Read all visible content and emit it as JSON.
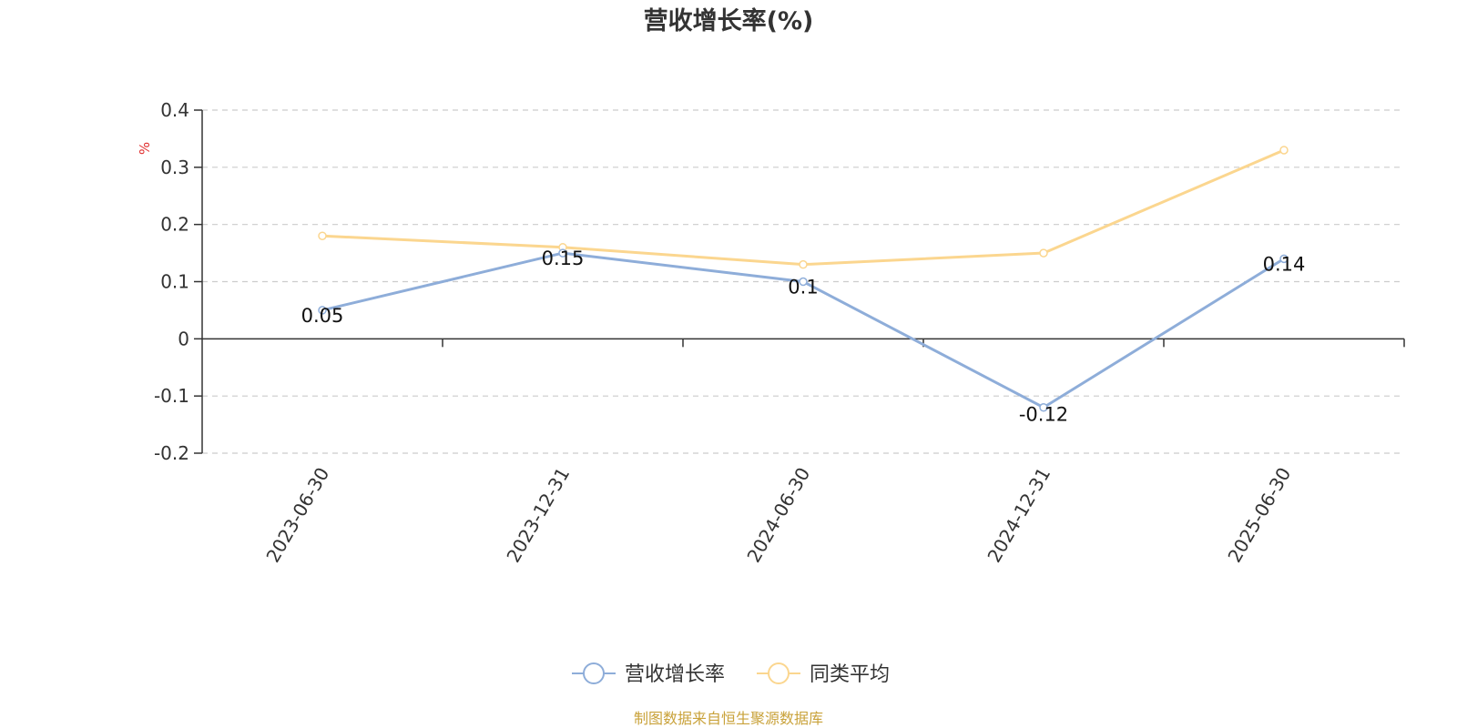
{
  "chart_data": {
    "type": "line",
    "title": "营收增长率(%)",
    "ylabel": "%",
    "xlabel": "",
    "categories": [
      "2023-06-30",
      "2023-12-31",
      "2024-06-30",
      "2024-12-31",
      "2025-06-30"
    ],
    "series": [
      {
        "name": "营收增长率",
        "values": [
          0.05,
          0.15,
          0.1,
          -0.12,
          0.14
        ],
        "color": "#8eadd9",
        "data_labels": [
          "0.05",
          "0.15",
          "0.1",
          "-0.12",
          "0.14"
        ],
        "show_labels": true
      },
      {
        "name": "同类平均",
        "values": [
          0.18,
          0.16,
          0.13,
          0.15,
          0.33
        ],
        "color": "#fbd68f",
        "show_labels": false
      }
    ],
    "ylim": [
      -0.2,
      0.4
    ],
    "yticks": [
      -0.2,
      -0.1,
      0,
      0.1,
      0.2,
      0.3,
      0.4
    ],
    "ytick_labels": [
      "-0.2",
      "-0.1",
      "0",
      "0.1",
      "0.2",
      "0.3",
      "0.4"
    ],
    "grid": true,
    "legend_position": "bottom-center"
  },
  "source": {
    "text": "制图数据来自恒生聚源数据库",
    "color": "#c9a23a"
  },
  "ylabel_color": "#e03030"
}
